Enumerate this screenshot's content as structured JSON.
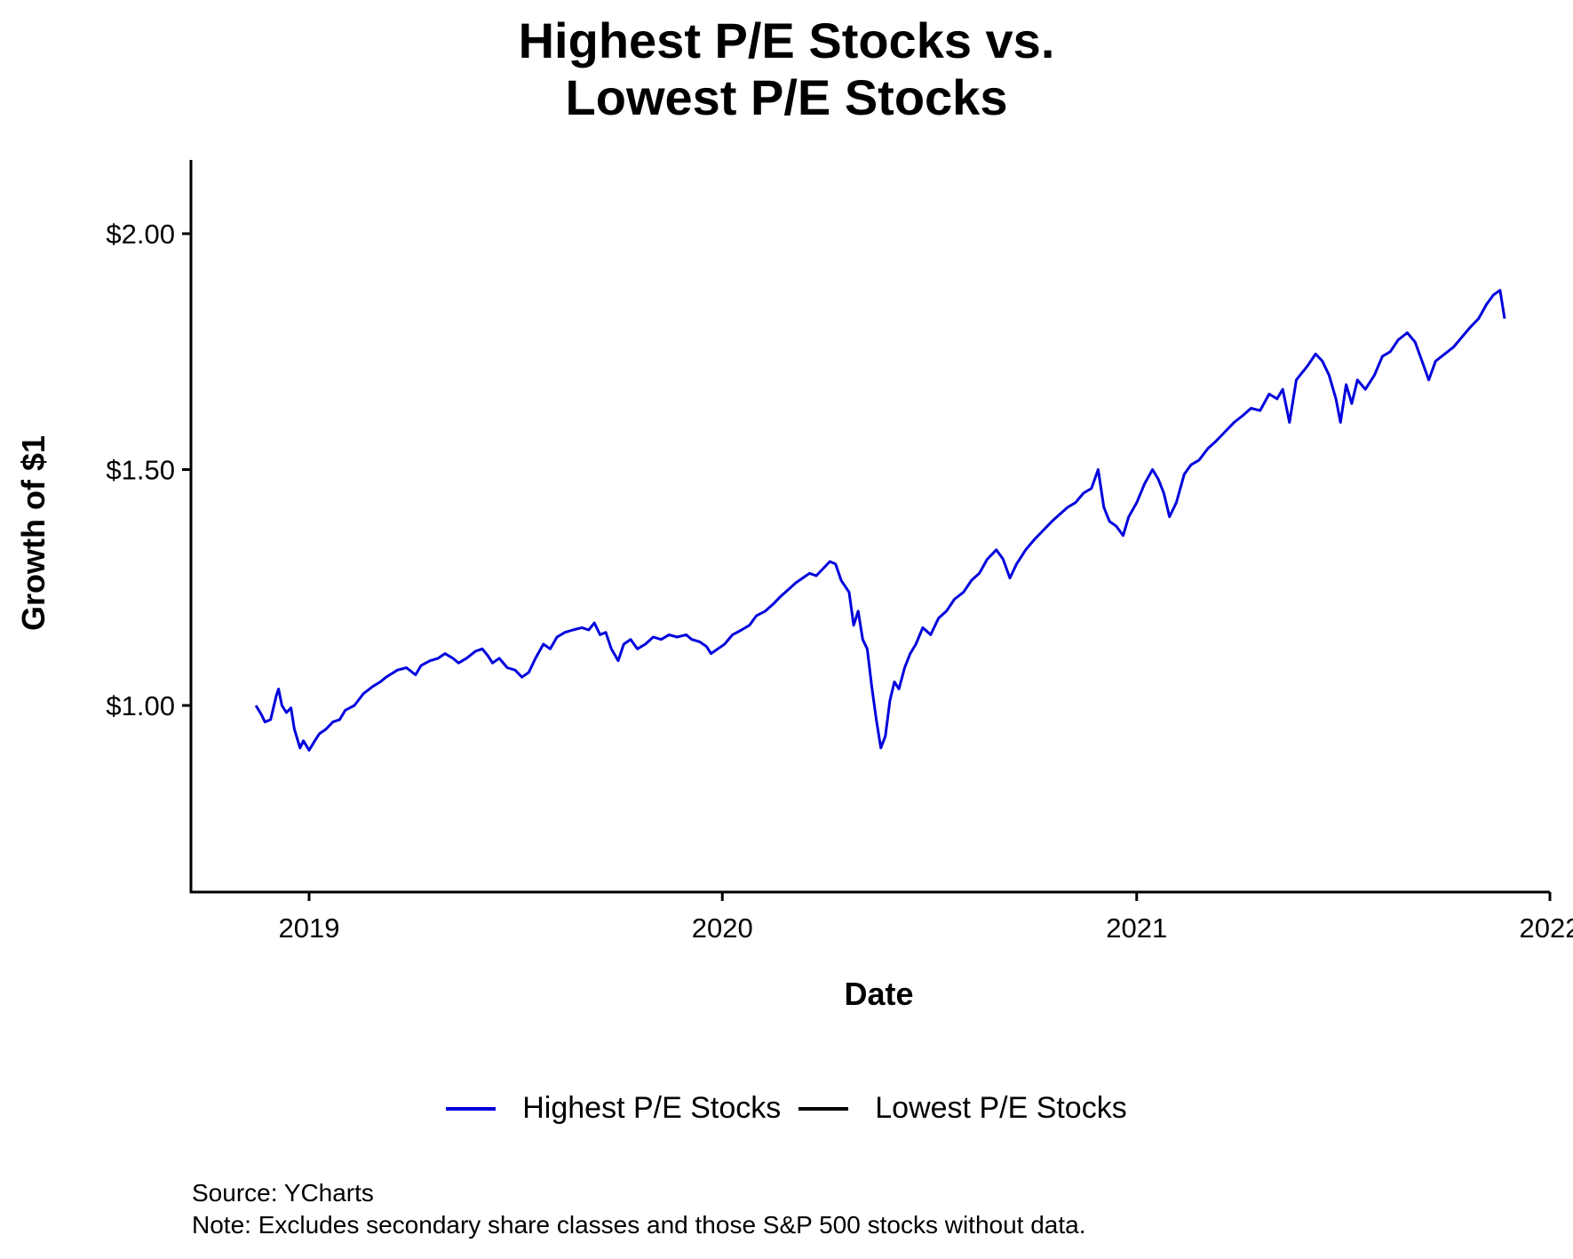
{
  "chart_data": {
    "type": "line",
    "title": "Highest P/E Stocks vs.\nLowest P/E Stocks",
    "title_lines": [
      "Highest P/E Stocks vs.",
      "Lowest P/E Stocks"
    ],
    "xlabel": "Date",
    "ylabel": "Growth of $1",
    "xlim": [
      "2018-10-15",
      "2022-01-01"
    ],
    "ylim": [
      0.62,
      2.15
    ],
    "x_ticks": [
      {
        "date": "2019-01-01",
        "label": "2019"
      },
      {
        "date": "2020-01-01",
        "label": "2020"
      },
      {
        "date": "2021-01-01",
        "label": "2021"
      },
      {
        "date": "2022-01-01",
        "label": "2022"
      }
    ],
    "y_ticks": [
      {
        "value": 1.0,
        "label": "$1.00"
      },
      {
        "value": 1.5,
        "label": "$1.50"
      },
      {
        "value": 2.0,
        "label": "$2.00"
      }
    ],
    "grid": false,
    "legend": "bottom",
    "series": [
      {
        "name": "Highest P/E Stocks",
        "color": "#0000dd",
        "points": [
          [
            "2018-11-15",
            1.0
          ],
          [
            "2018-11-20",
            0.98
          ],
          [
            "2018-11-23",
            0.965
          ],
          [
            "2018-11-28",
            0.97
          ],
          [
            "2018-12-03",
            1.02
          ],
          [
            "2018-12-05",
            1.035
          ],
          [
            "2018-12-08",
            1.0
          ],
          [
            "2018-12-12",
            0.985
          ],
          [
            "2018-12-16",
            0.995
          ],
          [
            "2018-12-19",
            0.95
          ],
          [
            "2018-12-24",
            0.91
          ],
          [
            "2018-12-27",
            0.925
          ],
          [
            "2019-01-01",
            0.905
          ],
          [
            "2019-01-06",
            0.925
          ],
          [
            "2019-01-10",
            0.94
          ],
          [
            "2019-01-16",
            0.95
          ],
          [
            "2019-01-22",
            0.965
          ],
          [
            "2019-01-28",
            0.97
          ],
          [
            "2019-02-02",
            0.99
          ],
          [
            "2019-02-10",
            1.0
          ],
          [
            "2019-02-18",
            1.025
          ],
          [
            "2019-02-26",
            1.04
          ],
          [
            "2019-03-05",
            1.05
          ],
          [
            "2019-03-10",
            1.06
          ],
          [
            "2019-03-20",
            1.075
          ],
          [
            "2019-03-28",
            1.08
          ],
          [
            "2019-04-05",
            1.065
          ],
          [
            "2019-04-10",
            1.085
          ],
          [
            "2019-04-18",
            1.095
          ],
          [
            "2019-04-25",
            1.1
          ],
          [
            "2019-05-01",
            1.11
          ],
          [
            "2019-05-08",
            1.1
          ],
          [
            "2019-05-13",
            1.09
          ],
          [
            "2019-05-20",
            1.1
          ],
          [
            "2019-05-28",
            1.115
          ],
          [
            "2019-06-03",
            1.12
          ],
          [
            "2019-06-08",
            1.105
          ],
          [
            "2019-06-12",
            1.09
          ],
          [
            "2019-06-18",
            1.1
          ],
          [
            "2019-06-25",
            1.08
          ],
          [
            "2019-07-02",
            1.075
          ],
          [
            "2019-07-08",
            1.06
          ],
          [
            "2019-07-14",
            1.07
          ],
          [
            "2019-07-20",
            1.1
          ],
          [
            "2019-07-27",
            1.13
          ],
          [
            "2019-08-02",
            1.12
          ],
          [
            "2019-08-08",
            1.145
          ],
          [
            "2019-08-15",
            1.155
          ],
          [
            "2019-08-22",
            1.16
          ],
          [
            "2019-08-30",
            1.165
          ],
          [
            "2019-09-05",
            1.16
          ],
          [
            "2019-09-10",
            1.175
          ],
          [
            "2019-09-15",
            1.15
          ],
          [
            "2019-09-20",
            1.155
          ],
          [
            "2019-09-25",
            1.12
          ],
          [
            "2019-10-01",
            1.095
          ],
          [
            "2019-10-06",
            1.13
          ],
          [
            "2019-10-12",
            1.14
          ],
          [
            "2019-10-18",
            1.12
          ],
          [
            "2019-10-25",
            1.13
          ],
          [
            "2019-11-01",
            1.145
          ],
          [
            "2019-11-08",
            1.14
          ],
          [
            "2019-11-15",
            1.15
          ],
          [
            "2019-11-22",
            1.145
          ],
          [
            "2019-11-30",
            1.15
          ],
          [
            "2019-12-05",
            1.14
          ],
          [
            "2019-12-12",
            1.135
          ],
          [
            "2019-12-18",
            1.125
          ],
          [
            "2019-12-22",
            1.11
          ],
          [
            "2019-12-28",
            1.12
          ],
          [
            "2020-01-03",
            1.13
          ],
          [
            "2020-01-10",
            1.15
          ],
          [
            "2020-01-18",
            1.16
          ],
          [
            "2020-01-25",
            1.17
          ],
          [
            "2020-01-31",
            1.19
          ],
          [
            "2020-02-08",
            1.2
          ],
          [
            "2020-02-15",
            1.215
          ],
          [
            "2020-02-21",
            1.23
          ],
          [
            "2020-02-28",
            1.245
          ],
          [
            "2020-03-06",
            1.26
          ],
          [
            "2020-03-12",
            1.27
          ],
          [
            "2020-03-18",
            1.28
          ],
          [
            "2020-03-24",
            1.275
          ],
          [
            "2020-03-30",
            1.29
          ],
          [
            "2020-04-05",
            1.305
          ],
          [
            "2020-04-10",
            1.3
          ],
          [
            "2020-04-15",
            1.265
          ],
          [
            "2020-04-22",
            1.24
          ],
          [
            "2020-04-26",
            1.17
          ],
          [
            "2020-04-30",
            1.2
          ],
          [
            "2020-05-04",
            1.14
          ],
          [
            "2020-05-08",
            1.12
          ],
          [
            "2020-05-12",
            1.04
          ],
          [
            "2020-05-16",
            0.97
          ],
          [
            "2020-05-20",
            0.91
          ],
          [
            "2020-05-24",
            0.935
          ],
          [
            "2020-05-28",
            1.01
          ],
          [
            "2020-06-01",
            1.05
          ],
          [
            "2020-06-05",
            1.035
          ],
          [
            "2020-06-10",
            1.08
          ],
          [
            "2020-06-15",
            1.11
          ],
          [
            "2020-06-20",
            1.13
          ],
          [
            "2020-06-26",
            1.165
          ],
          [
            "2020-07-03",
            1.15
          ],
          [
            "2020-07-10",
            1.185
          ],
          [
            "2020-07-17",
            1.2
          ],
          [
            "2020-07-24",
            1.225
          ],
          [
            "2020-08-01",
            1.24
          ],
          [
            "2020-08-08",
            1.265
          ],
          [
            "2020-08-15",
            1.28
          ],
          [
            "2020-08-22",
            1.31
          ],
          [
            "2020-08-30",
            1.33
          ],
          [
            "2020-09-05",
            1.31
          ],
          [
            "2020-09-11",
            1.27
          ],
          [
            "2020-09-17",
            1.3
          ],
          [
            "2020-09-25",
            1.33
          ],
          [
            "2020-10-02",
            1.35
          ],
          [
            "2020-10-10",
            1.37
          ],
          [
            "2020-10-18",
            1.39
          ],
          [
            "2020-10-25",
            1.405
          ],
          [
            "2020-11-01",
            1.42
          ],
          [
            "2020-11-08",
            1.43
          ],
          [
            "2020-11-15",
            1.45
          ],
          [
            "2020-11-22",
            1.46
          ],
          [
            "2020-11-28",
            1.5
          ],
          [
            "2020-12-03",
            1.42
          ],
          [
            "2020-12-08",
            1.39
          ],
          [
            "2020-12-14",
            1.38
          ],
          [
            "2020-12-20",
            1.36
          ],
          [
            "2020-12-25",
            1.4
          ],
          [
            "2021-01-01",
            1.43
          ],
          [
            "2021-01-08",
            1.47
          ],
          [
            "2021-01-15",
            1.5
          ],
          [
            "2021-01-20",
            1.48
          ],
          [
            "2021-01-25",
            1.45
          ],
          [
            "2021-01-30",
            1.4
          ],
          [
            "2021-02-05",
            1.43
          ],
          [
            "2021-02-12",
            1.49
          ],
          [
            "2021-02-18",
            1.51
          ],
          [
            "2021-02-25",
            1.52
          ],
          [
            "2021-03-05",
            1.545
          ],
          [
            "2021-03-12",
            1.56
          ],
          [
            "2021-03-20",
            1.58
          ],
          [
            "2021-03-28",
            1.6
          ],
          [
            "2021-04-05",
            1.615
          ],
          [
            "2021-04-12",
            1.63
          ],
          [
            "2021-04-20",
            1.625
          ],
          [
            "2021-04-28",
            1.66
          ],
          [
            "2021-05-05",
            1.65
          ],
          [
            "2021-05-10",
            1.67
          ],
          [
            "2021-05-16",
            1.6
          ],
          [
            "2021-05-22",
            1.69
          ],
          [
            "2021-06-01",
            1.72
          ],
          [
            "2021-06-08",
            1.745
          ],
          [
            "2021-06-14",
            1.73
          ],
          [
            "2021-06-20",
            1.7
          ],
          [
            "2021-06-26",
            1.65
          ],
          [
            "2021-06-30",
            1.6
          ],
          [
            "2021-07-05",
            1.68
          ],
          [
            "2021-07-10",
            1.64
          ],
          [
            "2021-07-15",
            1.69
          ],
          [
            "2021-07-22",
            1.67
          ],
          [
            "2021-07-30",
            1.7
          ],
          [
            "2021-08-06",
            1.74
          ],
          [
            "2021-08-13",
            1.75
          ],
          [
            "2021-08-20",
            1.775
          ],
          [
            "2021-08-28",
            1.79
          ],
          [
            "2021-09-04",
            1.77
          ],
          [
            "2021-09-10",
            1.73
          ],
          [
            "2021-09-16",
            1.69
          ],
          [
            "2021-09-22",
            1.73
          ],
          [
            "2021-09-30",
            1.745
          ],
          [
            "2021-10-08",
            1.76
          ],
          [
            "2021-10-15",
            1.78
          ],
          [
            "2021-10-22",
            1.8
          ],
          [
            "2021-10-30",
            1.82
          ],
          [
            "2021-11-06",
            1.85
          ],
          [
            "2021-11-12",
            1.87
          ],
          [
            "2021-11-18",
            1.88
          ],
          [
            "2021-11-22",
            1.82
          ]
        ]
      },
      {
        "name": "Lowest P/E Stocks",
        "color": "#000000",
        "points": []
      }
    ]
  },
  "source_lines": [
    "Source: YCharts",
    "Note: Excludes secondary share classes and those S&P 500 stocks without data."
  ]
}
